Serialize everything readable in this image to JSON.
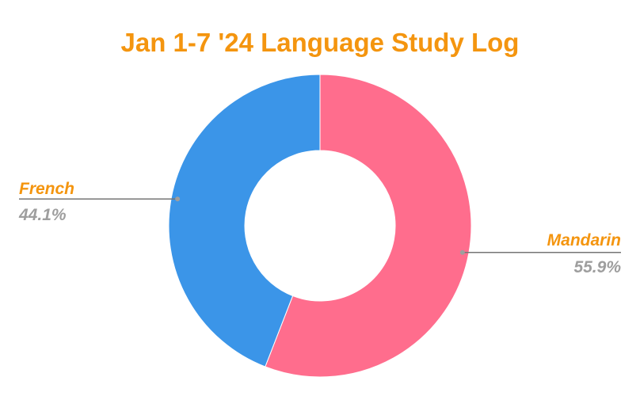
{
  "chart_data": {
    "type": "pie",
    "variant": "donut",
    "title": "Jan 1-7 '24 Language Study Log",
    "categories": [
      "Mandarin",
      "French"
    ],
    "values": [
      55.9,
      44.1
    ],
    "value_labels": [
      "55.9%",
      "44.1%"
    ],
    "colors": [
      "#ff6d8d",
      "#3b95e8"
    ],
    "title_color": "#f4950f",
    "label_color": "#f4950f",
    "percent_color": "#9e9e9e",
    "leader_color": "#757575",
    "legend": "none",
    "start_angle": "top, clockwise"
  }
}
